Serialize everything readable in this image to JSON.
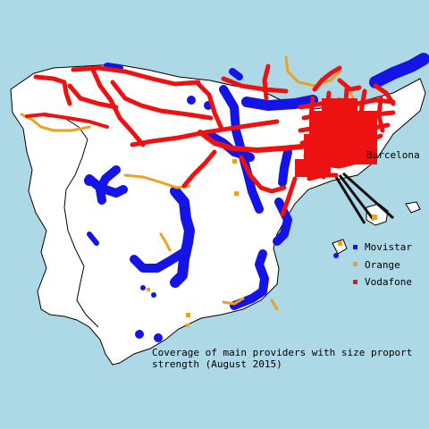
{
  "colors": {
    "sea": "#add8e6",
    "land": "#ffffff",
    "movistar": "#1414e6",
    "orange": "#f0a020",
    "vodafone": "#ee1111",
    "connector": "#111111"
  },
  "city_label": "Barcelona",
  "legend": [
    {
      "key": "movistar",
      "label": "Movistar"
    },
    {
      "key": "orange",
      "label": "Orange"
    },
    {
      "key": "vodafone",
      "label": "Vodafone"
    }
  ],
  "caption": {
    "line1": "Coverage of main providers with size proport",
    "line2": "strength (August 2015)"
  }
}
